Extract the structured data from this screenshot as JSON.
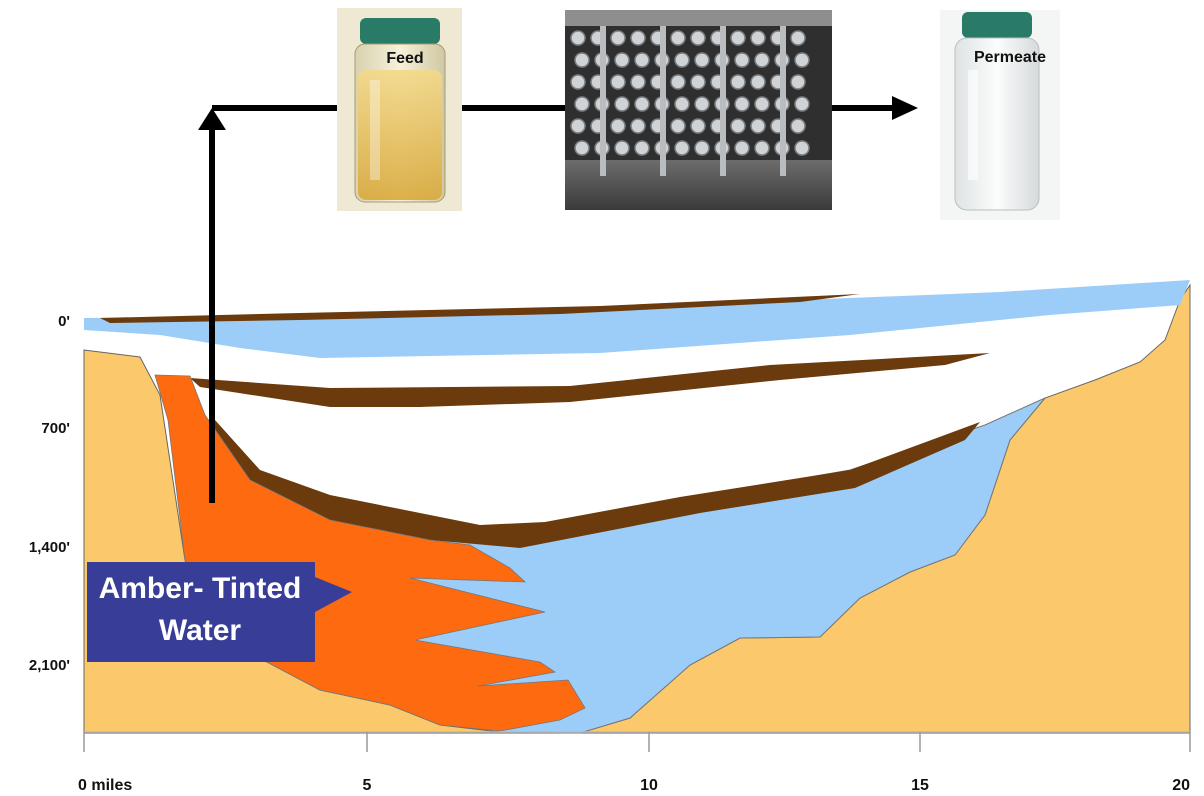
{
  "flow": {
    "feed_label": "Feed",
    "permeate_label": "Permeate"
  },
  "callout": {
    "line1": "Amber- Tinted",
    "line2": "Water"
  },
  "axes": {
    "depth_labels": [
      "0'",
      "700'",
      "1,400'",
      "2,100'"
    ],
    "distance_labels": [
      "0 miles",
      "5",
      "10",
      "15",
      "20"
    ]
  },
  "colors": {
    "bedrock": "#fbc96b",
    "aquifer_blue": "#9ccdf8",
    "confining_brown": "#6b3a0d",
    "amber_water": "#fe6a10",
    "callout_bg": "#383d98",
    "flow_arrow": "#000000"
  },
  "icons": [
    "feed-jar-icon",
    "treatment-plant-icon",
    "permeate-jar-icon"
  ]
}
